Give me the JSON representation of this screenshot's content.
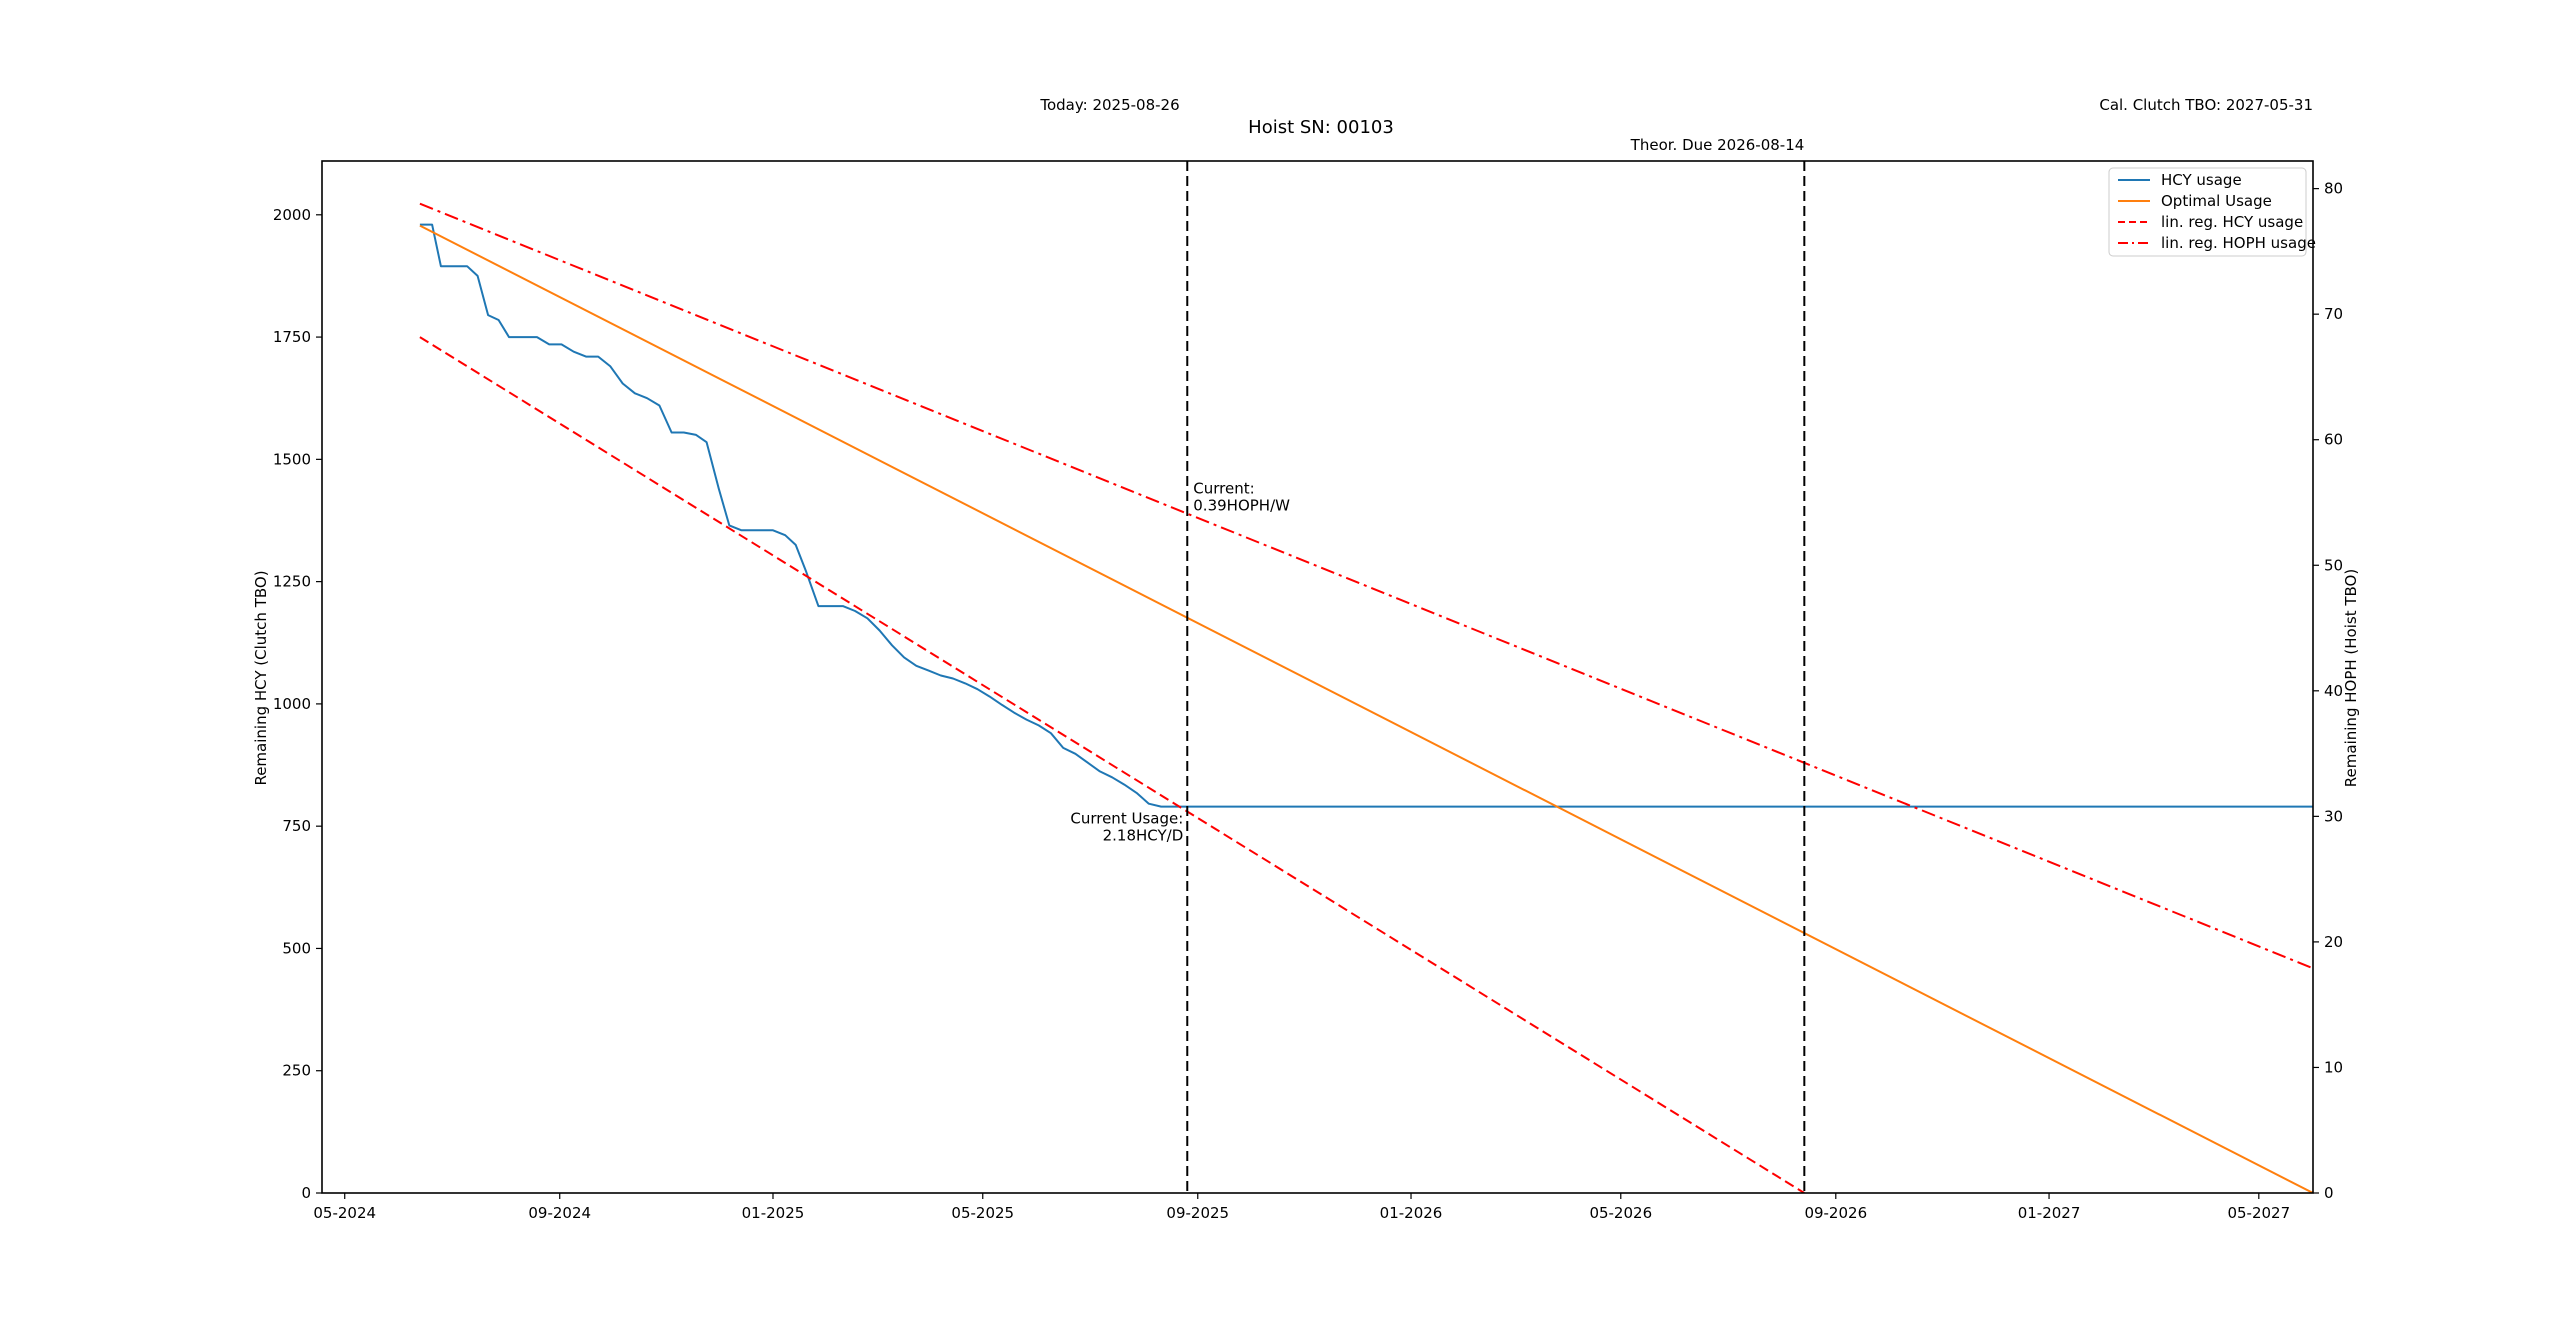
{
  "chart_data": {
    "type": "line",
    "title": "Hoist SN: 00103",
    "header_left": "Today: 2025-08-26",
    "header_right": "Cal. Clutch TBO: 2027-05-31",
    "ylabel": "Remaining HCY (Clutch TBO)",
    "y2label": "Remaining HOPH (Hoist TBO)",
    "xlim": [
      "2024-04-18",
      "2027-06-01"
    ],
    "ylim": [
      0,
      2110
    ],
    "y2lim": [
      0,
      82.2
    ],
    "x_ticks": [
      {
        "date": "2024-05-01",
        "label": "05-2024"
      },
      {
        "date": "2024-09-01",
        "label": "09-2024"
      },
      {
        "date": "2025-01-01",
        "label": "01-2025"
      },
      {
        "date": "2025-05-01",
        "label": "05-2025"
      },
      {
        "date": "2025-09-01",
        "label": "09-2025"
      },
      {
        "date": "2026-01-01",
        "label": "01-2026"
      },
      {
        "date": "2026-05-01",
        "label": "05-2026"
      },
      {
        "date": "2026-09-01",
        "label": "09-2026"
      },
      {
        "date": "2027-01-01",
        "label": "01-2027"
      },
      {
        "date": "2027-05-01",
        "label": "05-2027"
      }
    ],
    "y_ticks": [
      0,
      250,
      500,
      750,
      1000,
      1250,
      1500,
      1750,
      2000
    ],
    "y2_ticks": [
      0,
      10,
      20,
      30,
      40,
      50,
      60,
      70,
      80
    ],
    "legend_placement": "top-right",
    "series": [
      {
        "name": "HCY usage",
        "axis": "left",
        "color": "#1f77b4",
        "style": "solid",
        "points": [
          [
            "2024-06-13",
            1980
          ],
          [
            "2024-06-20",
            1980
          ],
          [
            "2024-06-25",
            1895
          ],
          [
            "2024-07-10",
            1895
          ],
          [
            "2024-07-16",
            1875
          ],
          [
            "2024-07-22",
            1795
          ],
          [
            "2024-07-28",
            1785
          ],
          [
            "2024-08-03",
            1750
          ],
          [
            "2024-08-19",
            1750
          ],
          [
            "2024-08-26",
            1735
          ],
          [
            "2024-09-02",
            1735
          ],
          [
            "2024-09-09",
            1720
          ],
          [
            "2024-09-16",
            1710
          ],
          [
            "2024-09-23",
            1710
          ],
          [
            "2024-09-30",
            1690
          ],
          [
            "2024-10-07",
            1655
          ],
          [
            "2024-10-14",
            1635
          ],
          [
            "2024-10-21",
            1625
          ],
          [
            "2024-10-28",
            1610
          ],
          [
            "2024-11-04",
            1555
          ],
          [
            "2024-11-11",
            1555
          ],
          [
            "2024-11-18",
            1550
          ],
          [
            "2024-11-24",
            1535
          ],
          [
            "2024-12-01",
            1440
          ],
          [
            "2024-12-07",
            1365
          ],
          [
            "2024-12-14",
            1355
          ],
          [
            "2025-01-01",
            1355
          ],
          [
            "2025-01-08",
            1345
          ],
          [
            "2025-01-14",
            1325
          ],
          [
            "2025-01-20",
            1270
          ],
          [
            "2025-01-27",
            1200
          ],
          [
            "2025-02-10",
            1200
          ],
          [
            "2025-02-17",
            1190
          ],
          [
            "2025-02-24",
            1175
          ],
          [
            "2025-03-03",
            1150
          ],
          [
            "2025-03-10",
            1120
          ],
          [
            "2025-03-17",
            1095
          ],
          [
            "2025-03-24",
            1078
          ],
          [
            "2025-03-31",
            1068
          ],
          [
            "2025-04-07",
            1058
          ],
          [
            "2025-04-14",
            1052
          ],
          [
            "2025-04-21",
            1042
          ],
          [
            "2025-04-28",
            1030
          ],
          [
            "2025-05-05",
            1015
          ],
          [
            "2025-05-12",
            998
          ],
          [
            "2025-05-19",
            982
          ],
          [
            "2025-05-26",
            968
          ],
          [
            "2025-06-02",
            956
          ],
          [
            "2025-06-09",
            940
          ],
          [
            "2025-06-16",
            910
          ],
          [
            "2025-06-23",
            898
          ],
          [
            "2025-06-30",
            880
          ],
          [
            "2025-07-07",
            862
          ],
          [
            "2025-07-14",
            850
          ],
          [
            "2025-07-21",
            835
          ],
          [
            "2025-07-28",
            818
          ],
          [
            "2025-08-04",
            796
          ],
          [
            "2025-08-11",
            790
          ],
          [
            "2025-08-26",
            790
          ],
          [
            "2027-06-01",
            790
          ]
        ]
      },
      {
        "name": "Optimal Usage",
        "axis": "left",
        "color": "#ff7f0e",
        "style": "solid",
        "points": [
          [
            "2024-06-13",
            1978
          ],
          [
            "2027-06-01",
            0
          ]
        ]
      },
      {
        "name": "lin. reg. HCY usage",
        "axis": "left",
        "color": "#ff0000",
        "style": "dashed",
        "points": [
          [
            "2024-06-13",
            1750
          ],
          [
            "2026-08-14",
            0
          ]
        ]
      },
      {
        "name": "lin. reg. HOPH usage",
        "axis": "right",
        "color": "#ff0000",
        "style": "dashdot",
        "points": [
          [
            "2024-06-13",
            78.8
          ],
          [
            "2027-06-01",
            17.9
          ]
        ]
      }
    ],
    "vlines": [
      {
        "date": "2025-08-26",
        "color": "#000000",
        "style": "dashed"
      },
      {
        "date": "2026-08-14",
        "color": "#000000",
        "style": "dashed",
        "label": "Theor. Due 2026-08-14"
      }
    ],
    "annotations": [
      {
        "lines": [
          "Current:",
          " 0.39HOPH/W"
        ],
        "date": "2025-08-26",
        "y": 1430,
        "anchor": "start"
      },
      {
        "lines": [
          "Current Usage:",
          "2.18HCY/D"
        ],
        "date": "2025-08-26",
        "y": 755,
        "anchor": "end"
      }
    ]
  }
}
